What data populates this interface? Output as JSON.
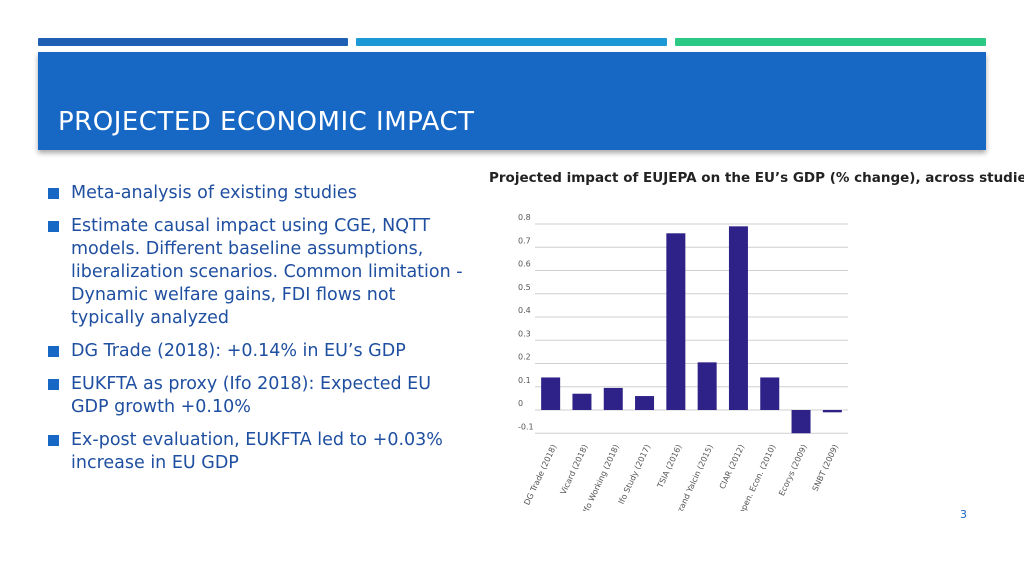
{
  "slide": {
    "title": "PROJECTED ECONOMIC IMPACT",
    "page_number": "3"
  },
  "colors": {
    "stripe_1": "#1f5fb4",
    "stripe_2": "#1d9ad6",
    "stripe_3": "#2cc985",
    "title_bar": "#1767c4",
    "bullet_text": "#1f4fa0",
    "bar": "#2e2188"
  },
  "bullets": [
    "Meta-analysis of existing studies",
    "Estimate causal impact using CGE, NQTT models.  Different baseline assumptions, liberalization scenarios. Common limitation - Dynamic welfare gains, FDI flows not typically analyzed",
    "DG Trade (2018): +0.14% in EU’s GDP",
    "EUKFTA as proxy (Ifo 2018): Expected EU GDP growth +0.10%",
    "Ex-post evaluation, EUKFTA led to +0.03% increase in EU GDP"
  ],
  "chart_data": {
    "type": "bar",
    "title": "Projected impact of EUJEPA on the EU’s GDP (% change), across studies",
    "xlabel": "",
    "ylabel": "",
    "categories": [
      "DG Trade (2018)",
      "Vicard (2018)",
      "Ifo Working (2018)",
      "Ifo Study (2017)",
      "TSIA (2016)",
      "Benzand Yalcin (2015)",
      "CIAR (2012)",
      "Copen. Econ. (2010)",
      "Ecorys (2009)",
      "SNBT (2009)"
    ],
    "values": [
      0.14,
      0.07,
      0.095,
      0.06,
      0.76,
      0.205,
      0.79,
      0.14,
      -0.1,
      -0.01
    ],
    "yticks": [
      "0.8",
      "0.7",
      "0.6",
      "0.5",
      "0.4",
      "0.3",
      "0.2",
      "0.1",
      "0",
      "-0.1"
    ],
    "ylim": [
      -0.13,
      0.8
    ],
    "grid": true,
    "bar_color": "#2e2188"
  }
}
